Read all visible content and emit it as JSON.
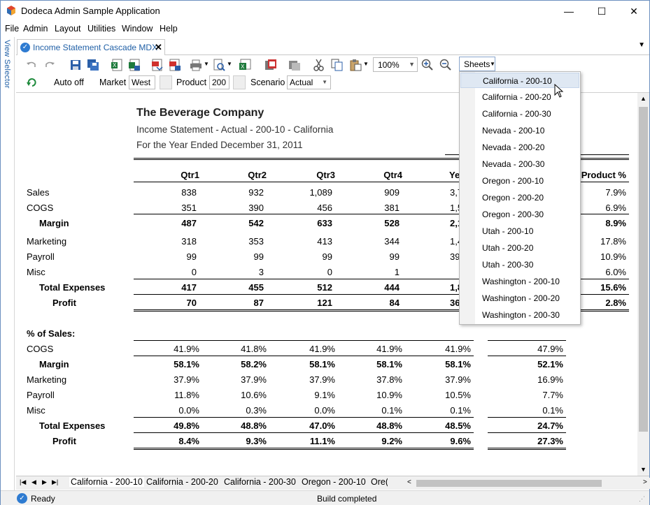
{
  "window": {
    "title": "Dodeca Admin Sample Application",
    "minimize": "—",
    "maximize": "☐",
    "close": "✕"
  },
  "menu": [
    "File",
    "Admin",
    "Layout",
    "Utilities",
    "Window",
    "Help"
  ],
  "view_selector": "View Selector",
  "doc_tab": {
    "label": "Income Statement Cascade MDX",
    "close": "✕",
    "check": "✓"
  },
  "toolbar": {
    "zoom": "100%",
    "sheets_label": "Sheets"
  },
  "toolbar2": {
    "auto_off": "Auto off",
    "market_label": "Market",
    "market_value": "West",
    "product_label": "Product",
    "product_value": "200",
    "scenario_label": "Scenario",
    "scenario_value": "Actual"
  },
  "report": {
    "company": "The Beverage Company",
    "subtitle": "Income Statement - Actual - 200-10 - California",
    "period": "For the Year Ended December 31, 2011",
    "headers": [
      "Qtr1",
      "Qtr2",
      "Qtr3",
      "Qtr4",
      "Ye"
    ],
    "product_header": "Product %",
    "rows": [
      {
        "label": "Sales",
        "vals": [
          "838",
          "932",
          "1,089",
          "909",
          "3,76"
        ],
        "pct": "7.9%",
        "bold": false,
        "indent": 0
      },
      {
        "label": "COGS",
        "vals": [
          "351",
          "390",
          "456",
          "381",
          "1,57"
        ],
        "pct": "6.9%",
        "bold": false,
        "indent": 0
      },
      {
        "label": "Margin",
        "vals": [
          "487",
          "542",
          "633",
          "528",
          "2,19"
        ],
        "pct": "8.9%",
        "bold": true,
        "indent": 1
      },
      {
        "label": "Marketing",
        "vals": [
          "318",
          "353",
          "413",
          "344",
          "1,42"
        ],
        "pct": "17.8%",
        "bold": false,
        "indent": 0
      },
      {
        "label": "Payroll",
        "vals": [
          "99",
          "99",
          "99",
          "99",
          "39"
        ],
        "pct": "10.9%",
        "bold": false,
        "indent": 0
      },
      {
        "label": "Misc",
        "vals": [
          "0",
          "3",
          "0",
          "1",
          ""
        ],
        "pct": "6.0%",
        "bold": false,
        "indent": 0
      },
      {
        "label": "Total Expenses",
        "vals": [
          "417",
          "455",
          "512",
          "444",
          "1,82"
        ],
        "pct": "15.6%",
        "bold": true,
        "indent": 1
      },
      {
        "label": "Profit",
        "vals": [
          "70",
          "87",
          "121",
          "84",
          "36"
        ],
        "pct": "2.8%",
        "bold": true,
        "indent": 2
      }
    ],
    "pct_section_label": "% of Sales:",
    "pct_rows": [
      {
        "label": "COGS",
        "vals": [
          "41.9%",
          "41.8%",
          "41.9%",
          "41.9%",
          "41.9%"
        ],
        "pct": "47.9%",
        "bold": false,
        "indent": 0
      },
      {
        "label": "Margin",
        "vals": [
          "58.1%",
          "58.2%",
          "58.1%",
          "58.1%",
          "58.1%"
        ],
        "pct": "52.1%",
        "bold": true,
        "indent": 1
      },
      {
        "label": "Marketing",
        "vals": [
          "37.9%",
          "37.9%",
          "37.9%",
          "37.8%",
          "37.9%"
        ],
        "pct": "16.9%",
        "bold": false,
        "indent": 0
      },
      {
        "label": "Payroll",
        "vals": [
          "11.8%",
          "10.6%",
          "9.1%",
          "10.9%",
          "10.5%"
        ],
        "pct": "7.7%",
        "bold": false,
        "indent": 0
      },
      {
        "label": "Misc",
        "vals": [
          "0.0%",
          "0.3%",
          "0.0%",
          "0.1%",
          "0.1%"
        ],
        "pct": "0.1%",
        "bold": false,
        "indent": 0
      },
      {
        "label": "Total Expenses",
        "vals": [
          "49.8%",
          "48.8%",
          "47.0%",
          "48.8%",
          "48.5%"
        ],
        "pct": "24.7%",
        "bold": true,
        "indent": 1
      },
      {
        "label": "Profit",
        "vals": [
          "8.4%",
          "9.3%",
          "11.1%",
          "9.2%",
          "9.6%"
        ],
        "pct": "27.3%",
        "bold": true,
        "indent": 2
      }
    ]
  },
  "sheets_dropdown": [
    "California - 200-10",
    "California - 200-20",
    "California - 200-30",
    "Nevada - 200-10",
    "Nevada - 200-20",
    "Nevada - 200-30",
    "Oregon - 200-10",
    "Oregon - 200-20",
    "Oregon - 200-30",
    "Utah - 200-10",
    "Utah - 200-20",
    "Utah - 200-30",
    "Washington - 200-10",
    "Washington - 200-20",
    "Washington - 200-30"
  ],
  "sheet_tabs": [
    "California - 200-10",
    "California - 200-20",
    "California - 200-30",
    "Oregon - 200-10",
    "Ore("
  ],
  "status": {
    "left": "Ready",
    "center": "Build completed"
  }
}
